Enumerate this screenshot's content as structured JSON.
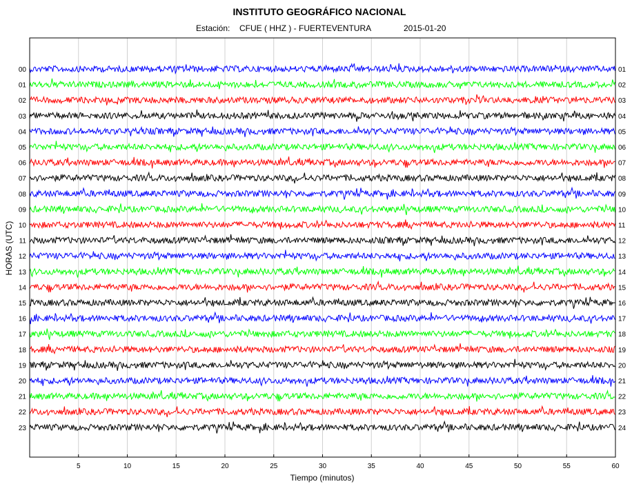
{
  "header": {
    "title": "INSTITUTO GEOGRÁFICO NACIONAL",
    "station_label": "Estación:",
    "station_value": "CFUE ( HHZ ) - FUERTEVENTURA",
    "date": "2015-01-20"
  },
  "chart_data": {
    "type": "line",
    "title": "INSTITUTO GEOGRÁFICO NACIONAL",
    "subtitle": "Estación:  CFUE ( HHZ ) - FUERTEVENTURA          2015-01-20",
    "xlabel": "Tiempo (minutos)",
    "ylabel": "HORAS (UTC)",
    "xlim": [
      0,
      60
    ],
    "x_ticks": [
      5,
      10,
      15,
      20,
      25,
      30,
      35,
      40,
      45,
      50,
      55,
      60
    ],
    "vertical_gridlines": true,
    "left_hour_labels": [
      "00",
      "01",
      "02",
      "03",
      "04",
      "05",
      "06",
      "07",
      "08",
      "09",
      "10",
      "11",
      "12",
      "13",
      "14",
      "15",
      "16",
      "17",
      "18",
      "19",
      "20",
      "21",
      "22",
      "23"
    ],
    "right_hour_labels": [
      "01",
      "02",
      "03",
      "04",
      "05",
      "06",
      "07",
      "08",
      "09",
      "10",
      "11",
      "12",
      "13",
      "14",
      "15",
      "16",
      "17",
      "18",
      "19",
      "20",
      "21",
      "22",
      "23",
      "24"
    ],
    "trace_colors": [
      "#0000ff",
      "#00ff00",
      "#ff0000",
      "#000000"
    ],
    "trace_color_note": "colors cycle per hour: blue, green, red, black"
  }
}
